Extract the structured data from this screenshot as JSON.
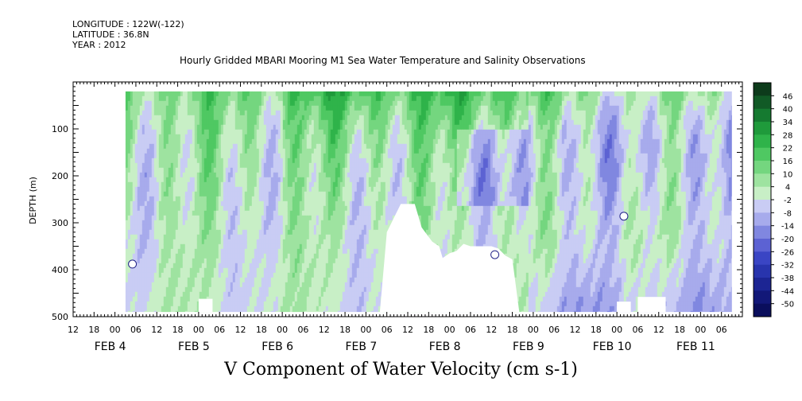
{
  "header": {
    "longitude": "LONGITUDE : 122W(-122)",
    "latitude": "LATITUDE : 36.8N",
    "year": "YEAR : 2012",
    "title": "Hourly Gridded MBARI Mooring M1 Sea Water Temperature and Salinity Observations"
  },
  "chart_data": {
    "type": "heatmap",
    "title": "V Component of Water Velocity (cm s-1)",
    "xlabel": "",
    "ylabel": "DEPTH (m)",
    "time_range_hours": [
      "2012-02-03 12:00",
      "2012-02-11 12:00"
    ],
    "hour_ticks": [
      "12",
      "18",
      "00",
      "06",
      "12",
      "18",
      "00",
      "06",
      "12",
      "18",
      "00",
      "06",
      "12",
      "18",
      "00",
      "06",
      "12",
      "18",
      "00",
      "06",
      "12",
      "18",
      "00",
      "06",
      "12",
      "18",
      "00",
      "06",
      "12",
      "18",
      "00",
      "06"
    ],
    "day_labels": [
      "FEB  4",
      "FEB  5",
      "FEB  6",
      "FEB  7",
      "FEB  8",
      "FEB  9",
      "FEB 10",
      "FEB 11"
    ],
    "ylim": [
      500,
      0
    ],
    "y_ticks": [
      100,
      200,
      300,
      400,
      500
    ],
    "data_extent": {
      "start": "2012-02-04 03:00",
      "end": "2012-02-11 09:00",
      "depth_top": 20,
      "depth_bottom": 490
    },
    "colorbar": {
      "labels": [
        "46",
        "40",
        "34",
        "28",
        "22",
        "16",
        "10",
        "4",
        "-2",
        "-8",
        "-14",
        "-20",
        "-26",
        "-32",
        "-38",
        "-44",
        "-50"
      ],
      "colors": [
        "#0d3b1b",
        "#115a26",
        "#157a30",
        "#1f9a3b",
        "#2fb34a",
        "#4fc862",
        "#74d67f",
        "#9ee3a0",
        "#c8efc6",
        "#c9ccf4",
        "#a7abec",
        "#8087e0",
        "#5c62d3",
        "#3a45c4",
        "#2834ad",
        "#1c2593",
        "#121878",
        "#0a0e5c"
      ]
    },
    "depth_profile_regimes": [
      "surface layer mostly positive (green) with deep negative (blue) columns"
    ]
  }
}
